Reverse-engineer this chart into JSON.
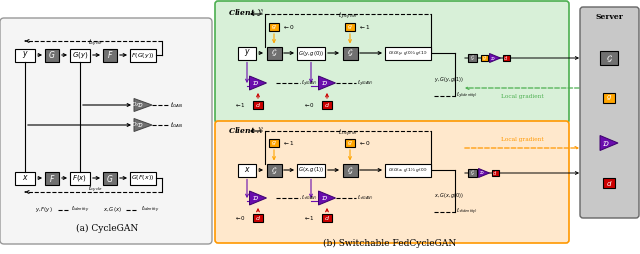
{
  "fig_width": 6.4,
  "fig_height": 2.54,
  "dpi": 100,
  "bg_color": "#ffffff",
  "gray_box": "#707070",
  "dark_gray": "#555555",
  "light_gray": "#cccccc",
  "green_bg": "#d8f0d8",
  "green_border": "#4caf50",
  "orange_bg": "#ffe8cc",
  "orange_border": "#ff9800",
  "server_bg": "#c8c8c8",
  "gold_color": "#ffa500",
  "purple_color": "#6a0dad",
  "red_color": "#cc0000",
  "caption_a": "(a) CycleGAN",
  "caption_b": "(b) Switchable FedCycleGAN",
  "client_y_label": "Client $\\mathcal{Y}$",
  "client_x_label": "Client $\\mathcal{X}$",
  "server_label": "Server"
}
